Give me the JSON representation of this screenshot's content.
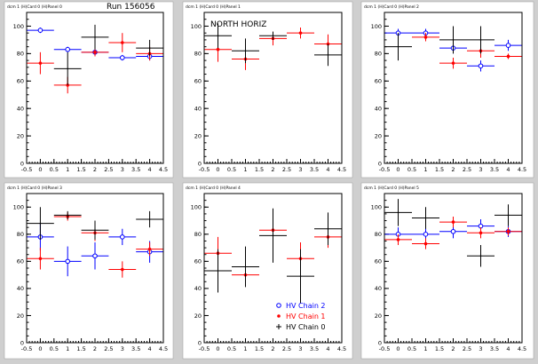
{
  "colors": {
    "chain2": "#0000ff",
    "chain1": "#ff0000",
    "chain0": "#000000"
  },
  "legend": [
    {
      "label": "HV Chain 2",
      "color": "#0000ff",
      "marker": "open-circle"
    },
    {
      "label": "HV Chain 1",
      "color": "#ff0000",
      "marker": "star"
    },
    {
      "label": "HV Chain 0",
      "color": "#000000",
      "marker": "cross"
    }
  ],
  "chart_data": [
    {
      "type": "scatter",
      "pad_title": "dcm 1 (H)Card 0 (H)Panel 0",
      "annotation": "Run 156056",
      "xlim": [
        -0.5,
        4.5
      ],
      "ylim": [
        0,
        110
      ],
      "xticks": [
        "-0.5",
        "0",
        "0.5",
        "1",
        "1.5",
        "2",
        "2.5",
        "3",
        "3.5",
        "4",
        "4.5"
      ],
      "yticks": [
        "0",
        "20",
        "40",
        "60",
        "80",
        "100"
      ],
      "series": [
        {
          "name": "HV Chain 2",
          "points": [
            {
              "x": 0,
              "y": 97,
              "err": 2
            },
            {
              "x": 1,
              "y": 83,
              "err": 2
            },
            {
              "x": 2,
              "y": 81,
              "err": 2
            },
            {
              "x": 3,
              "y": 77,
              "err": 2
            },
            {
              "x": 4,
              "y": 78,
              "err": 3
            }
          ]
        },
        {
          "name": "HV Chain 1",
          "points": [
            {
              "x": 0,
              "y": 73,
              "err": 8
            },
            {
              "x": 1,
              "y": 57,
              "err": 6
            },
            {
              "x": 2,
              "y": 81,
              "err": 3
            },
            {
              "x": 3,
              "y": 88,
              "err": 7
            },
            {
              "x": 4,
              "y": 80,
              "err": 5
            }
          ]
        },
        {
          "name": "HV Chain 0",
          "points": [
            {
              "x": 1,
              "y": 69,
              "err": 12
            },
            {
              "x": 2,
              "y": 92,
              "err": 9
            },
            {
              "x": 4,
              "y": 84,
              "err": 6
            }
          ]
        }
      ]
    },
    {
      "type": "scatter",
      "pad_title": "dcm 1 (H)Card 0 (H)Panel 1",
      "annotation": "NORTH HORIZ",
      "xlim": [
        -0.5,
        4.5
      ],
      "ylim": [
        0,
        110
      ],
      "xticks": [
        "-0.5",
        "0",
        "0.5",
        "1",
        "1.5",
        "2",
        "2.5",
        "3",
        "3.5",
        "4",
        "4.5"
      ],
      "yticks": [
        "0",
        "20",
        "40",
        "60",
        "80",
        "100"
      ],
      "series": [
        {
          "name": "HV Chain 2",
          "points": []
        },
        {
          "name": "HV Chain 1",
          "points": [
            {
              "x": 0,
              "y": 83,
              "err": 9
            },
            {
              "x": 1,
              "y": 76,
              "err": 8
            },
            {
              "x": 2,
              "y": 91,
              "err": 5
            },
            {
              "x": 3,
              "y": 95,
              "err": 4
            },
            {
              "x": 4,
              "y": 87,
              "err": 7
            }
          ]
        },
        {
          "name": "HV Chain 0",
          "points": [
            {
              "x": 0,
              "y": 93,
              "err": 9
            },
            {
              "x": 1,
              "y": 82,
              "err": 9
            },
            {
              "x": 2,
              "y": 93,
              "err": 3
            },
            {
              "x": 4,
              "y": 79,
              "err": 8
            }
          ]
        }
      ]
    },
    {
      "type": "scatter",
      "pad_title": "dcm 1 (H)Card 0 (H)Panel 2",
      "annotation": "",
      "xlim": [
        -0.5,
        4.5
      ],
      "ylim": [
        0,
        110
      ],
      "xticks": [
        "-0.5",
        "0",
        "0.5",
        "1",
        "1.5",
        "2",
        "2.5",
        "3",
        "3.5",
        "4",
        "4.5"
      ],
      "yticks": [
        "0",
        "20",
        "40",
        "60",
        "80",
        "100"
      ],
      "series": [
        {
          "name": "HV Chain 2",
          "points": [
            {
              "x": 0,
              "y": 95,
              "err": 3
            },
            {
              "x": 1,
              "y": 95,
              "err": 3
            },
            {
              "x": 2,
              "y": 84,
              "err": 4
            },
            {
              "x": 3,
              "y": 71,
              "err": 4
            },
            {
              "x": 4,
              "y": 86,
              "err": 4
            }
          ]
        },
        {
          "name": "HV Chain 1",
          "points": [
            {
              "x": 1,
              "y": 92,
              "err": 3
            },
            {
              "x": 2,
              "y": 73,
              "err": 4
            },
            {
              "x": 3,
              "y": 82,
              "err": 5
            },
            {
              "x": 4,
              "y": 78,
              "err": 2
            }
          ]
        },
        {
          "name": "HV Chain 0",
          "points": [
            {
              "x": 0,
              "y": 85,
              "err": 10
            },
            {
              "x": 2,
              "y": 90,
              "err": 10
            },
            {
              "x": 3,
              "y": 90,
              "err": 10
            }
          ]
        }
      ]
    },
    {
      "type": "scatter",
      "pad_title": "dcm 1 (H)Card 0 (H)Panel 3",
      "annotation": "",
      "xlim": [
        -0.5,
        4.5
      ],
      "ylim": [
        0,
        110
      ],
      "xticks": [
        "-0.5",
        "0",
        "0.5",
        "1",
        "1.5",
        "2",
        "2.5",
        "3",
        "3.5",
        "4",
        "4.5"
      ],
      "yticks": [
        "0",
        "20",
        "40",
        "60",
        "80",
        "100"
      ],
      "series": [
        {
          "name": "HV Chain 2",
          "points": [
            {
              "x": 0,
              "y": 78,
              "err": 10
            },
            {
              "x": 1,
              "y": 60,
              "err": 11
            },
            {
              "x": 2,
              "y": 64,
              "err": 10
            },
            {
              "x": 3,
              "y": 78,
              "err": 6
            },
            {
              "x": 4,
              "y": 67,
              "err": 8
            }
          ]
        },
        {
          "name": "HV Chain 1",
          "points": [
            {
              "x": 0,
              "y": 62,
              "err": 8
            },
            {
              "x": 1,
              "y": 93,
              "err": 3
            },
            {
              "x": 2,
              "y": 81,
              "err": 6
            },
            {
              "x": 3,
              "y": 54,
              "err": 6
            },
            {
              "x": 4,
              "y": 69,
              "err": 5
            }
          ]
        },
        {
          "name": "HV Chain 0",
          "points": [
            {
              "x": 0,
              "y": 88,
              "err": 12
            },
            {
              "x": 1,
              "y": 94,
              "err": 3
            },
            {
              "x": 2,
              "y": 83,
              "err": 7
            },
            {
              "x": 4,
              "y": 91,
              "err": 6
            }
          ]
        }
      ]
    },
    {
      "type": "scatter",
      "pad_title": "dcm 1 (H)Card 0 (H)Panel 4",
      "annotation": "",
      "xlim": [
        -0.5,
        4.5
      ],
      "ylim": [
        0,
        110
      ],
      "xticks": [
        "-0.5",
        "0",
        "0.5",
        "1",
        "1.5",
        "2",
        "2.5",
        "3",
        "3.5",
        "4",
        "4.5"
      ],
      "yticks": [
        "0",
        "20",
        "40",
        "60",
        "80",
        "100"
      ],
      "series": [
        {
          "name": "HV Chain 2",
          "points": []
        },
        {
          "name": "HV Chain 1",
          "points": [
            {
              "x": 0,
              "y": 66,
              "err": 12
            },
            {
              "x": 1,
              "y": 50,
              "err": 8
            },
            {
              "x": 2,
              "y": 83,
              "err": 12
            },
            {
              "x": 3,
              "y": 62,
              "err": 12
            },
            {
              "x": 4,
              "y": 78,
              "err": 8
            }
          ]
        },
        {
          "name": "HV Chain 0",
          "points": [
            {
              "x": 0,
              "y": 53,
              "err": 16
            },
            {
              "x": 1,
              "y": 56,
              "err": 15
            },
            {
              "x": 2,
              "y": 79,
              "err": 20
            },
            {
              "x": 3,
              "y": 49,
              "err": 20
            },
            {
              "x": 4,
              "y": 84,
              "err": 12
            }
          ]
        }
      ]
    },
    {
      "type": "scatter",
      "pad_title": "dcm 1 (H)Card 0 (H)Panel 5",
      "annotation": "",
      "xlim": [
        -0.5,
        4.5
      ],
      "ylim": [
        0,
        110
      ],
      "xticks": [
        "-0.5",
        "0",
        "0.5",
        "1",
        "1.5",
        "2",
        "2.5",
        "3",
        "3.5",
        "4",
        "4.5"
      ],
      "yticks": [
        "0",
        "20",
        "40",
        "60",
        "80",
        "100"
      ],
      "series": [
        {
          "name": "HV Chain 2",
          "points": [
            {
              "x": 0,
              "y": 80,
              "err": 5
            },
            {
              "x": 1,
              "y": 80,
              "err": 5
            },
            {
              "x": 2,
              "y": 82,
              "err": 5
            },
            {
              "x": 3,
              "y": 86,
              "err": 5
            },
            {
              "x": 4,
              "y": 82,
              "err": 4
            }
          ]
        },
        {
          "name": "HV Chain 1",
          "points": [
            {
              "x": 0,
              "y": 76,
              "err": 4
            },
            {
              "x": 1,
              "y": 73,
              "err": 4
            },
            {
              "x": 2,
              "y": 89,
              "err": 4
            },
            {
              "x": 3,
              "y": 81,
              "err": 4
            },
            {
              "x": 4,
              "y": 82,
              "err": 3
            }
          ]
        },
        {
          "name": "HV Chain 0",
          "points": [
            {
              "x": 0,
              "y": 96,
              "err": 10
            },
            {
              "x": 1,
              "y": 92,
              "err": 8
            },
            {
              "x": 3,
              "y": 64,
              "err": 8
            },
            {
              "x": 4,
              "y": 94,
              "err": 8
            }
          ]
        }
      ]
    }
  ]
}
